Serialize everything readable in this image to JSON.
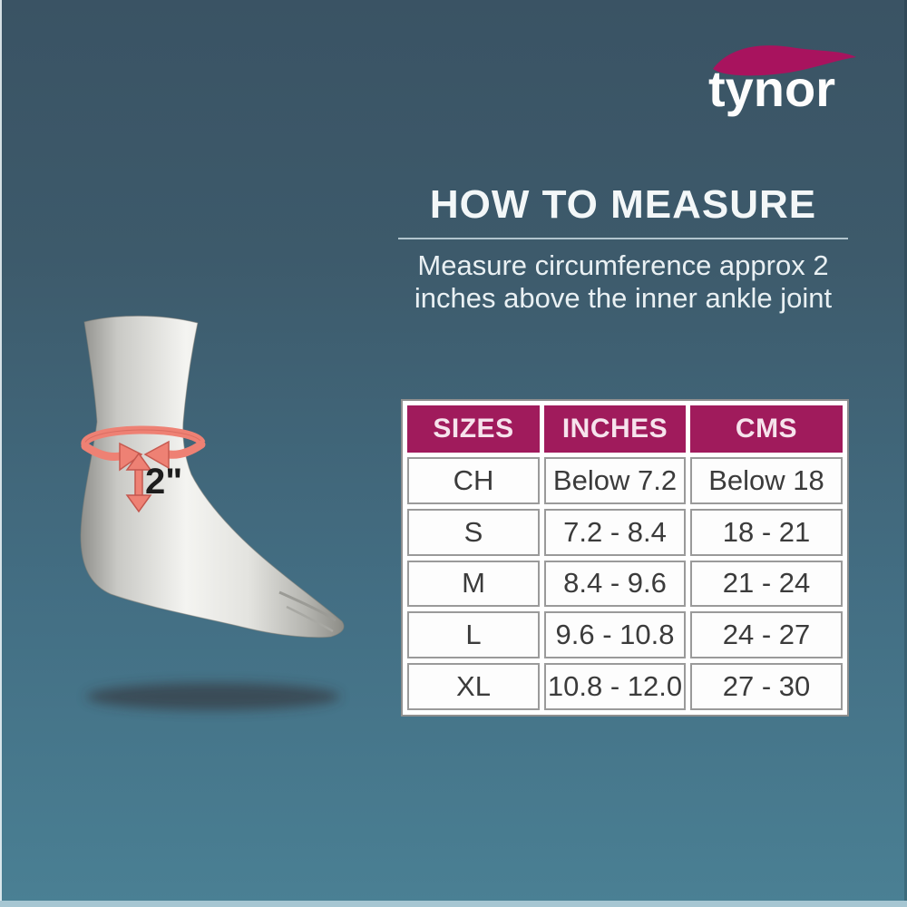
{
  "logo": {
    "text": "tynor",
    "swoosh_color": "#a8135e"
  },
  "instructions": {
    "title": "HOW TO MEASURE",
    "line1": "Measure circumference approx 2",
    "line2": "inches above the inner ankle joint"
  },
  "illustration": {
    "measurement_label": "2\"",
    "arrow_color": "#ee8174"
  },
  "size_chart": {
    "columns": [
      "SIZES",
      "INCHES",
      "CMS"
    ],
    "rows": [
      [
        "CH",
        "Below 7.2",
        "Below 18"
      ],
      [
        "S",
        "7.2 - 8.4",
        "18 - 21"
      ],
      [
        "M",
        "8.4 - 9.6",
        "21 - 24"
      ],
      [
        "L",
        "9.6  - 10.8",
        "24 - 27"
      ],
      [
        "XL",
        "10.8 - 12.0",
        "27 - 30"
      ]
    ],
    "header_bg": "#a01b5c"
  },
  "chart_data": {
    "type": "table",
    "title": "HOW TO MEASURE",
    "subtitle": "Measure circumference approx 2 inches above the inner ankle joint",
    "columns": [
      "SIZES",
      "INCHES",
      "CMS"
    ],
    "rows": [
      [
        "CH",
        "Below 7.2",
        "Below 18"
      ],
      [
        "S",
        "7.2 - 8.4",
        "18 - 21"
      ],
      [
        "M",
        "8.4 - 9.6",
        "21 - 24"
      ],
      [
        "L",
        "9.6  - 10.8",
        "24 - 27"
      ],
      [
        "XL",
        "10.8 - 12.0",
        "27 - 30"
      ]
    ]
  },
  "colors": {
    "background_top": "#3a5364",
    "background_bottom": "#4a8094",
    "table_header": "#a01b5c",
    "swoosh": "#a8135e",
    "arrow": "#ee8174"
  }
}
